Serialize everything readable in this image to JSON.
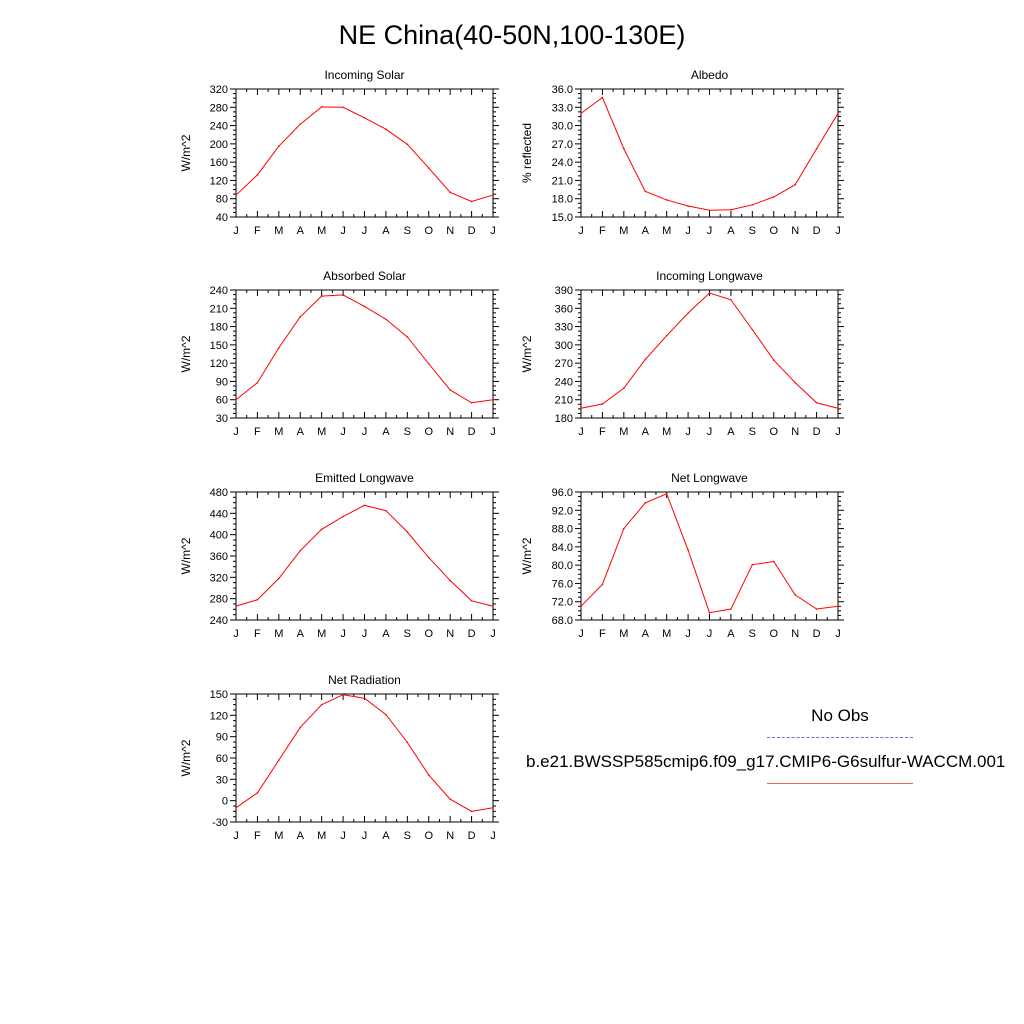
{
  "title": "NE China(40-50N,100-130E)",
  "months": [
    "J",
    "F",
    "M",
    "A",
    "M",
    "J",
    "J",
    "A",
    "S",
    "O",
    "N",
    "D",
    "J"
  ],
  "legend": {
    "obs_label": "No Obs",
    "model_label": "b.e21.BWSSP585cmip6.f09_g17.CMIP6-G6sulfur-WACCM.001",
    "obs_color": "#6a6ae6",
    "model_color": "#e06a6a"
  },
  "line_color": "#ff0000",
  "chart_data": [
    {
      "type": "line",
      "title": "Incoming Solar",
      "ylabel": "W/m^2",
      "ylim": [
        40,
        320
      ],
      "yticks": [
        40,
        80,
        120,
        160,
        200,
        240,
        280,
        320
      ],
      "ytick_labels": [
        "40",
        "80",
        "120",
        "160",
        "200",
        "240",
        "280",
        "320"
      ],
      "categories": [
        "J",
        "F",
        "M",
        "A",
        "M",
        "J",
        "J",
        "A",
        "S",
        "O",
        "N",
        "D",
        "J"
      ],
      "values": [
        88,
        132,
        195,
        243,
        281,
        280,
        257,
        232,
        199,
        147,
        94,
        74,
        88
      ]
    },
    {
      "type": "line",
      "title": "Albedo",
      "ylabel": "% reflected",
      "ylim": [
        15,
        36
      ],
      "yticks": [
        15,
        18,
        21,
        24,
        27,
        30,
        33,
        36
      ],
      "ytick_labels": [
        "15.0",
        "18.0",
        "21.0",
        "24.0",
        "27.0",
        "30.0",
        "33.0",
        "36.0"
      ],
      "categories": [
        "J",
        "F",
        "M",
        "A",
        "M",
        "J",
        "J",
        "A",
        "S",
        "O",
        "N",
        "D",
        "J"
      ],
      "values": [
        32.0,
        34.6,
        26.2,
        19.2,
        17.8,
        16.8,
        16.1,
        16.2,
        17.0,
        18.3,
        20.3,
        26.2,
        32.0
      ]
    },
    {
      "type": "line",
      "title": "Absorbed Solar",
      "ylabel": "W/m^2",
      "ylim": [
        30,
        240
      ],
      "yticks": [
        30,
        60,
        90,
        120,
        150,
        180,
        210,
        240
      ],
      "ytick_labels": [
        "30",
        "60",
        "90",
        "120",
        "150",
        "180",
        "210",
        "240"
      ],
      "categories": [
        "J",
        "F",
        "M",
        "A",
        "M",
        "J",
        "J",
        "A",
        "S",
        "O",
        "N",
        "D",
        "J"
      ],
      "values": [
        60,
        88,
        145,
        196,
        230,
        232,
        213,
        192,
        163,
        119,
        76,
        55,
        60
      ]
    },
    {
      "type": "line",
      "title": "Incoming Longwave",
      "ylabel": "W/m^2",
      "ylim": [
        180,
        390
      ],
      "yticks": [
        180,
        210,
        240,
        270,
        300,
        330,
        360,
        390
      ],
      "ytick_labels": [
        "180",
        "210",
        "240",
        "270",
        "300",
        "330",
        "360",
        "390"
      ],
      "categories": [
        "J",
        "F",
        "M",
        "A",
        "M",
        "J",
        "J",
        "A",
        "S",
        "O",
        "N",
        "D",
        "J"
      ],
      "values": [
        196,
        203,
        229,
        276,
        315,
        352,
        385,
        374,
        325,
        275,
        238,
        205,
        196
      ]
    },
    {
      "type": "line",
      "title": "Emitted Longwave",
      "ylabel": "W/m^2",
      "ylim": [
        240,
        480
      ],
      "yticks": [
        240,
        280,
        320,
        360,
        400,
        440,
        480
      ],
      "ytick_labels": [
        "240",
        "280",
        "320",
        "360",
        "400",
        "440",
        "480"
      ],
      "categories": [
        "J",
        "F",
        "M",
        "A",
        "M",
        "J",
        "J",
        "A",
        "S",
        "O",
        "N",
        "D",
        "J"
      ],
      "values": [
        266,
        278,
        318,
        370,
        410,
        434,
        455,
        445,
        405,
        357,
        314,
        276,
        266
      ]
    },
    {
      "type": "line",
      "title": "Net Longwave",
      "ylabel": "W/m^2",
      "ylim": [
        68,
        96
      ],
      "yticks": [
        68,
        72,
        76,
        80,
        84,
        88,
        92,
        96
      ],
      "ytick_labels": [
        "68.0",
        "72.0",
        "76.0",
        "80.0",
        "84.0",
        "88.0",
        "92.0",
        "96.0"
      ],
      "categories": [
        "J",
        "F",
        "M",
        "A",
        "M",
        "J",
        "J",
        "A",
        "S",
        "O",
        "N",
        "D",
        "J"
      ],
      "values": [
        71.0,
        75.8,
        88.0,
        93.6,
        95.6,
        83.3,
        69.6,
        70.4,
        80.1,
        80.8,
        73.5,
        70.4,
        71.0
      ]
    },
    {
      "type": "line",
      "title": "Net Radiation",
      "ylabel": "W/m^2",
      "ylim": [
        -30,
        150
      ],
      "yticks": [
        -30,
        0,
        30,
        60,
        90,
        120,
        150
      ],
      "ytick_labels": [
        "-30",
        "0",
        "30",
        "60",
        "90",
        "120",
        "150"
      ],
      "categories": [
        "J",
        "F",
        "M",
        "A",
        "M",
        "J",
        "J",
        "A",
        "S",
        "O",
        "N",
        "D",
        "J"
      ],
      "values": [
        -10,
        11,
        57,
        103,
        135,
        149,
        144,
        121,
        82,
        36,
        2,
        -15,
        -10
      ]
    }
  ]
}
